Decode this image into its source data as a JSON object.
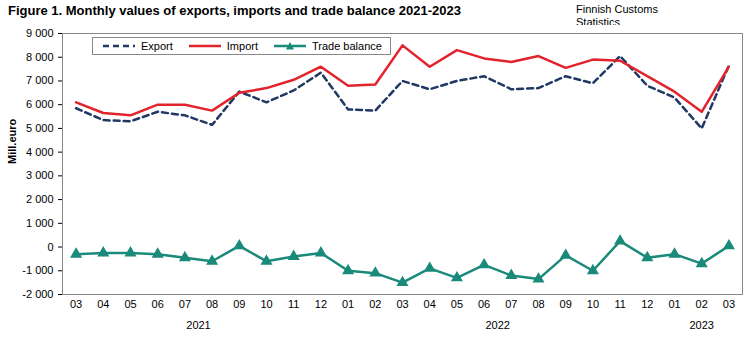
{
  "chart_data": {
    "type": "line",
    "title": "Figure 1. Monthly values of exports, imports and trade balance 2021-2023",
    "source": "Finnish Customs Statistics",
    "y_label": "Mill.euro",
    "categories": [
      "03",
      "04",
      "05",
      "06",
      "07",
      "08",
      "09",
      "10",
      "11",
      "12",
      "01",
      "02",
      "03",
      "04",
      "05",
      "06",
      "07",
      "08",
      "09",
      "10",
      "11",
      "12",
      "01",
      "02",
      "03"
    ],
    "year_groups": [
      {
        "label": "2021",
        "count": 10
      },
      {
        "label": "2022",
        "count": 12
      },
      {
        "label": "2023",
        "count": 3
      }
    ],
    "series": [
      {
        "name": "Export",
        "color": "#1f3864",
        "line_style": "dashed",
        "values": [
          5850,
          5350,
          5300,
          5700,
          5550,
          5150,
          6550,
          6100,
          6600,
          7350,
          5800,
          5750,
          7000,
          6650,
          7000,
          7200,
          6650,
          6700,
          7200,
          6900,
          8050,
          6800,
          6300,
          5000,
          7650
        ]
      },
      {
        "name": "Import",
        "color": "#e3232c",
        "line_style": "solid",
        "values": [
          6100,
          5650,
          5550,
          6000,
          6000,
          5750,
          6500,
          6700,
          7050,
          7600,
          6800,
          6850,
          8500,
          7600,
          8300,
          7950,
          7800,
          8050,
          7550,
          7900,
          7850,
          7200,
          6550,
          5700,
          7600
        ]
      },
      {
        "name": "Trade balance",
        "color": "#1a8a7a",
        "line_style": "solid",
        "marker": "triangle",
        "values": [
          -300,
          -250,
          -250,
          -300,
          -450,
          -600,
          50,
          -600,
          -400,
          -250,
          -1000,
          -1100,
          -1500,
          -900,
          -1300,
          -750,
          -1200,
          -1350,
          -350,
          -1000,
          250,
          -450,
          -300,
          -700,
          50
        ]
      }
    ],
    "ylim": [
      -2000,
      9000
    ],
    "yticks": [
      {
        "value": -2000,
        "label": "-2 000"
      },
      {
        "value": -1000,
        "label": "-1 000"
      },
      0,
      {
        "value": 1000,
        "label": "1 000"
      },
      {
        "value": 2000,
        "label": "2 000"
      },
      {
        "value": 3000,
        "label": "3 000"
      },
      {
        "value": 4000,
        "label": "4 000"
      },
      {
        "value": 5000,
        "label": "5 000"
      },
      {
        "value": 6000,
        "label": "6 000"
      },
      {
        "value": 7000,
        "label": "7 000"
      },
      {
        "value": 8000,
        "label": "8 000"
      },
      {
        "value": 9000,
        "label": "9 000"
      }
    ],
    "grid": false,
    "legend": "top-left"
  }
}
